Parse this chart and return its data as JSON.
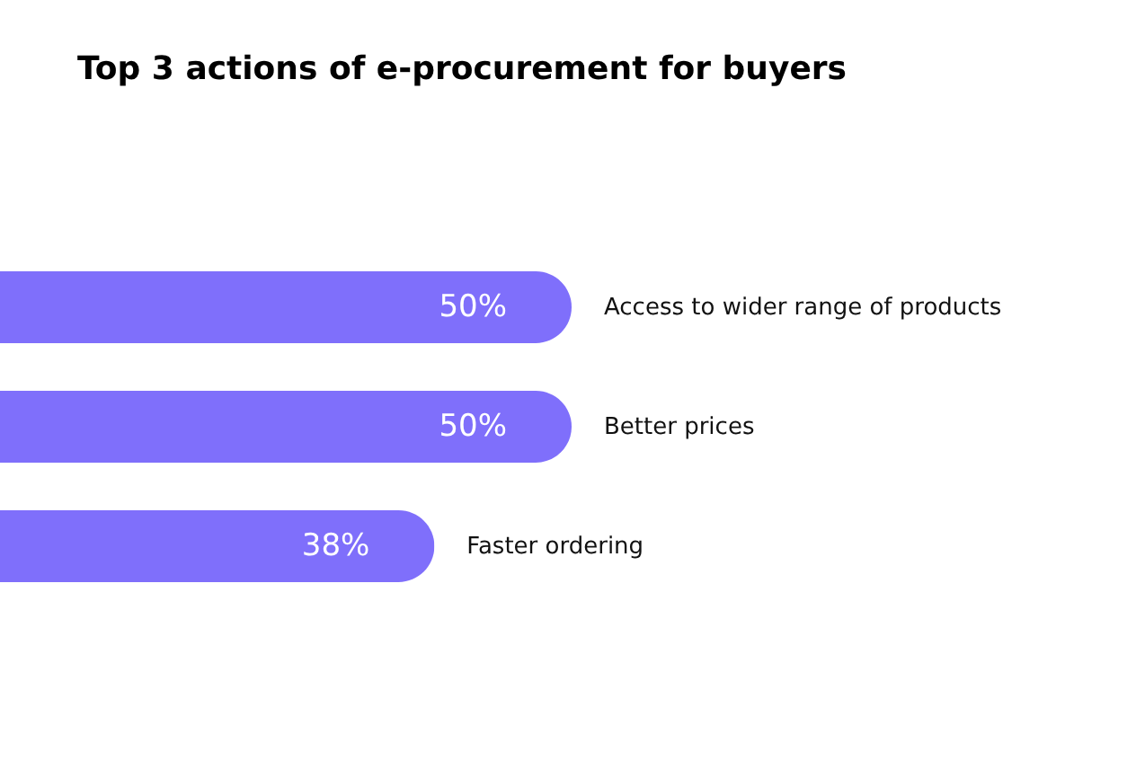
{
  "chart_data": {
    "type": "bar",
    "orientation": "horizontal",
    "title": "Top 3 actions of e-procurement for buyers",
    "categories": [
      "Access to wider range of products",
      "Better prices",
      "Faster ordering"
    ],
    "values": [
      50,
      50,
      38
    ],
    "value_labels": [
      "50%",
      "50%",
      "38%"
    ],
    "color": "#7f6ffb",
    "xlim": [
      0,
      50
    ],
    "tick_labels": "y"
  }
}
